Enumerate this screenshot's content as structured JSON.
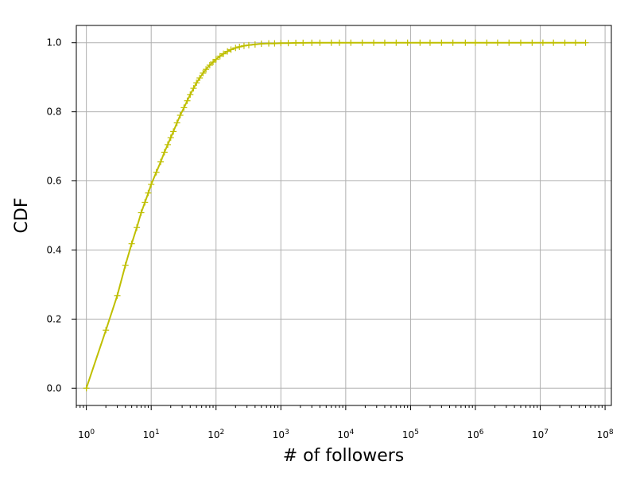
{
  "chart_data": {
    "type": "line",
    "title": "",
    "xlabel": "# of followers",
    "ylabel": "CDF",
    "x_scale": "log",
    "xlim": [
      0.7,
      125000000
    ],
    "ylim": [
      -0.05,
      1.05
    ],
    "grid": true,
    "legend": "none",
    "x_ticks": [
      {
        "base": "10",
        "exp": "0",
        "value": 1
      },
      {
        "base": "10",
        "exp": "1",
        "value": 10
      },
      {
        "base": "10",
        "exp": "2",
        "value": 100
      },
      {
        "base": "10",
        "exp": "3",
        "value": 1000
      },
      {
        "base": "10",
        "exp": "4",
        "value": 10000
      },
      {
        "base": "10",
        "exp": "5",
        "value": 100000
      },
      {
        "base": "10",
        "exp": "6",
        "value": 1000000
      },
      {
        "base": "10",
        "exp": "7",
        "value": 10000000
      },
      {
        "base": "10",
        "exp": "8",
        "value": 100000000
      }
    ],
    "y_ticks": [
      "0.0",
      "0.2",
      "0.4",
      "0.6",
      "0.8",
      "1.0"
    ],
    "series": [
      {
        "color": "#bfbf00",
        "marker": "+",
        "x": [
          1,
          2,
          3,
          4,
          5,
          6,
          7,
          8,
          9,
          10,
          12,
          14,
          16,
          18,
          20,
          22,
          25,
          28,
          32,
          36,
          40,
          45,
          50,
          56,
          63,
          70,
          80,
          90,
          100,
          115,
          130,
          150,
          170,
          200,
          230,
          270,
          320,
          400,
          500,
          650,
          800,
          1000,
          1300,
          1700,
          2200,
          3000,
          4000,
          6000,
          8000,
          12000,
          18000,
          27000,
          40000,
          60000,
          90000,
          140000,
          200000,
          300000,
          450000,
          700000,
          1000000,
          1500000,
          2200000,
          3300000,
          5000000,
          7500000,
          11000000,
          16000000,
          24000000,
          35000000,
          50000000
        ],
        "y": [
          0.0,
          0.168,
          0.268,
          0.356,
          0.418,
          0.465,
          0.508,
          0.538,
          0.565,
          0.59,
          0.625,
          0.655,
          0.683,
          0.705,
          0.725,
          0.743,
          0.768,
          0.79,
          0.812,
          0.832,
          0.85,
          0.868,
          0.884,
          0.898,
          0.912,
          0.923,
          0.935,
          0.944,
          0.952,
          0.961,
          0.968,
          0.975,
          0.98,
          0.985,
          0.988,
          0.991,
          0.993,
          0.995,
          0.997,
          0.998,
          0.998,
          0.999,
          0.999,
          0.9995,
          0.9997,
          0.9998,
          0.9999,
          1.0,
          1.0,
          1.0,
          1.0,
          1.0,
          1.0,
          1.0,
          1.0,
          1.0,
          1.0,
          1.0,
          1.0,
          1.0,
          1.0,
          1.0,
          1.0,
          1.0,
          1.0,
          1.0,
          1.0,
          1.0,
          1.0,
          1.0,
          1.0
        ]
      }
    ]
  }
}
